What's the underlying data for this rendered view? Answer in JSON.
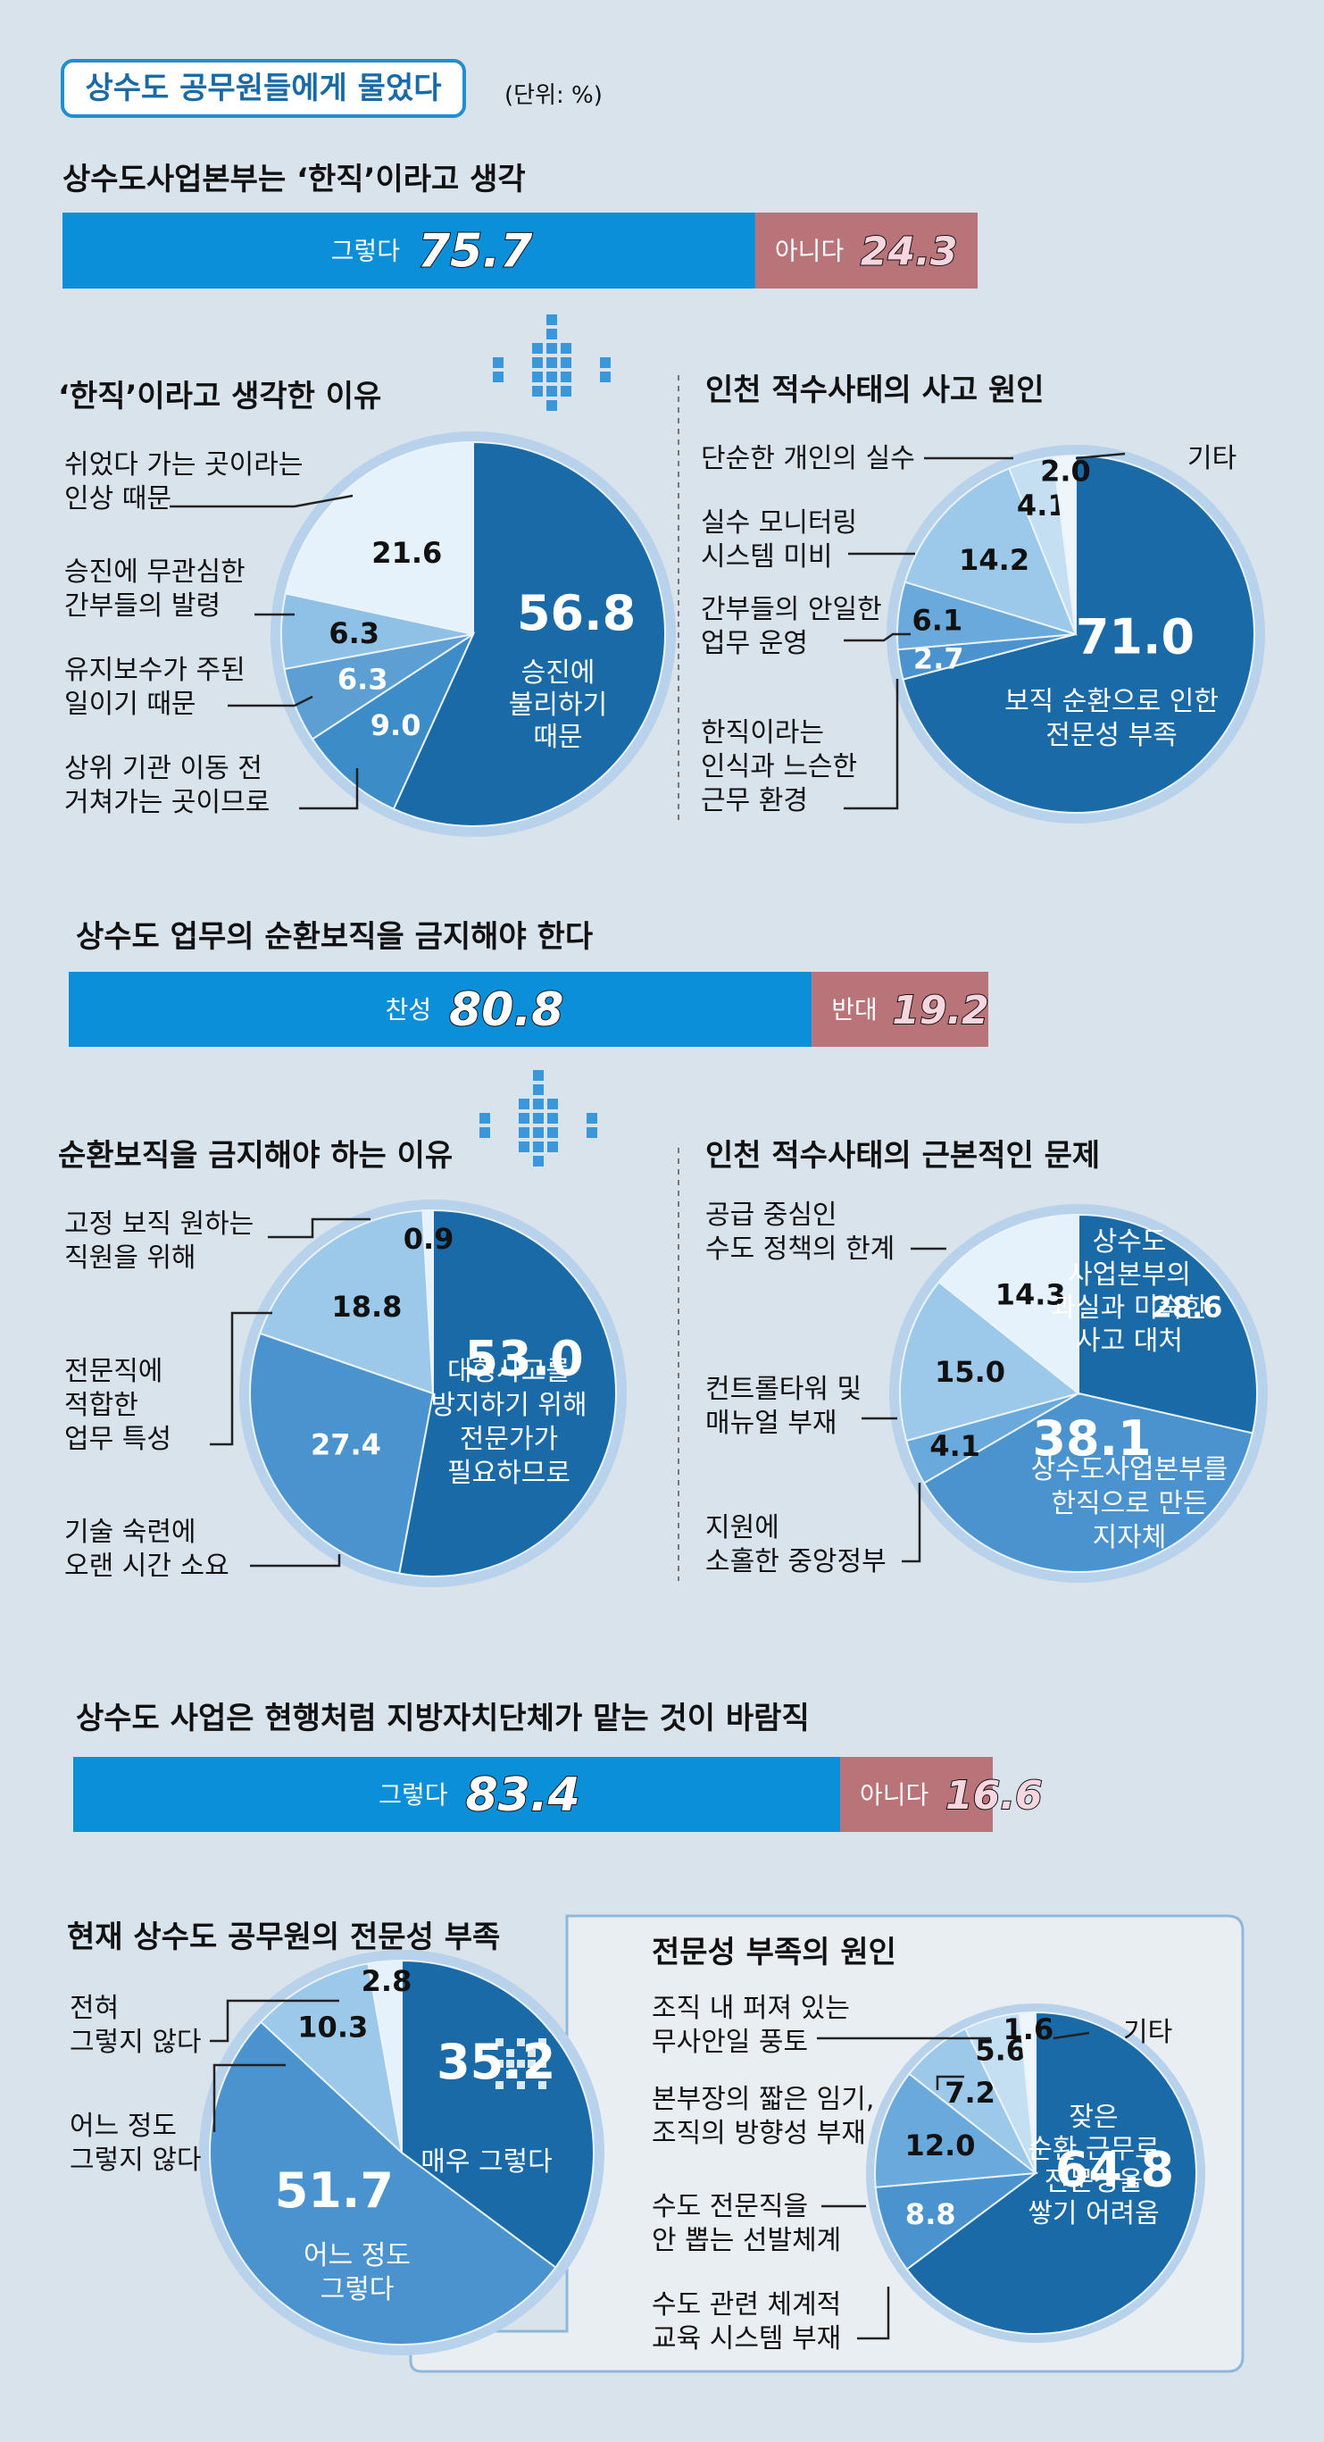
{
  "title": "상수도 공무원들에게 물었다",
  "unit": "(단위: %)",
  "bars": [
    {
      "title": "상수도사업본부는 ‘한직’이라고 생각",
      "yes_label": "그렇다",
      "yes": 75.7,
      "yes_text": "75.7",
      "no_label": "아니다",
      "no": 24.3,
      "no_text": "24.3"
    },
    {
      "title": "상수도 업무의 순환보직을 금지해야 한다",
      "yes_label": "찬성",
      "yes": 80.8,
      "yes_text": "80.8",
      "no_label": "반대",
      "no": 19.2,
      "no_text": "19.2"
    },
    {
      "title": "상수도 사업은 현행처럼 지방자치단체가 맡는 것이 바람직",
      "yes_label": "그렇다",
      "yes": 83.4,
      "yes_text": "83.4",
      "no_label": "아니다",
      "no": 16.6,
      "no_text": "16.6"
    }
  ],
  "pie_titles": {
    "p1": "‘한직’이라고 생각한 이유",
    "p2": "인천 적수사태의 사고 원인",
    "p3": "순환보직을 금지해야 하는 이유",
    "p4": "인천 적수사태의 근본적인 문제",
    "p5": "현재 상수도 공무원의 전문성 부족",
    "p6": "전문성 부족의 원인"
  },
  "chart_data": [
    {
      "type": "bar",
      "title": "상수도사업본부는 ‘한직’이라고 생각",
      "categories": [
        "그렇다",
        "아니다"
      ],
      "values": [
        75.7,
        24.3
      ]
    },
    {
      "type": "pie",
      "title": "‘한직’이라고 생각한 이유",
      "slices": [
        {
          "label": "승진에 불리하기 때문",
          "value": 56.8
        },
        {
          "label": "상위 기관 이동 전 거쳐가는 곳이므로",
          "value": 9.0
        },
        {
          "label": "유지보수가 주된 일이기 때문",
          "value": 6.3
        },
        {
          "label": "승진에 무관심한 간부들의 발령",
          "value": 6.3
        },
        {
          "label": "쉬었다 가는 곳이라는 인상 때문",
          "value": 21.6
        }
      ]
    },
    {
      "type": "pie",
      "title": "인천 적수사태의 사고 원인",
      "slices": [
        {
          "label": "보직 순환으로 인한 전문성 부족",
          "value": 71.0
        },
        {
          "label": "한직이라는 인식과 느슨한 근무 환경",
          "value": 2.7
        },
        {
          "label": "간부들의 안일한 업무 운영",
          "value": 6.1
        },
        {
          "label": "실수 모니터링 시스템 미비",
          "value": 14.2
        },
        {
          "label": "단순한 개인의 실수",
          "value": 4.1
        },
        {
          "label": "기타",
          "value": 2.0
        }
      ]
    },
    {
      "type": "bar",
      "title": "상수도 업무의 순환보직을 금지해야 한다",
      "categories": [
        "찬성",
        "반대"
      ],
      "values": [
        80.8,
        19.2
      ]
    },
    {
      "type": "pie",
      "title": "순환보직을 금지해야 하는 이유",
      "slices": [
        {
          "label": "대형사고를 방지하기 위해 전문가가 필요하므로",
          "value": 53.0
        },
        {
          "label": "기술 숙련에 오랜 시간 소요",
          "value": 27.4
        },
        {
          "label": "전문직에 적합한 업무 특성",
          "value": 18.8
        },
        {
          "label": "고정 보직 원하는 직원을 위해",
          "value": 0.9
        }
      ]
    },
    {
      "type": "pie",
      "title": "인천 적수사태의 근본적인 문제",
      "slices": [
        {
          "label": "상수도사업본부의 과실과 미숙한 사고 대처",
          "value": 28.6
        },
        {
          "label": "상수도사업본부를 한직으로 만든 지자체",
          "value": 38.1
        },
        {
          "label": "지원에 소홀한 중앙정부",
          "value": 4.1
        },
        {
          "label": "컨트롤타워 및 매뉴얼 부재",
          "value": 15.0
        },
        {
          "label": "공급 중심인 수도 정책의 한계",
          "value": 14.3
        }
      ]
    },
    {
      "type": "bar",
      "title": "상수도 사업은 현행처럼 지방자치단체가 맡는 것이 바람직",
      "categories": [
        "그렇다",
        "아니다"
      ],
      "values": [
        83.4,
        16.6
      ]
    },
    {
      "type": "pie",
      "title": "현재 상수도 공무원의 전문성 부족",
      "slices": [
        {
          "label": "매우 그렇다",
          "value": 35.2
        },
        {
          "label": "어느 정도 그렇다",
          "value": 51.7
        },
        {
          "label": "어느 정도 그렇지 않다",
          "value": 10.3
        },
        {
          "label": "전혀 그렇지 않다",
          "value": 2.8
        }
      ]
    },
    {
      "type": "pie",
      "title": "전문성 부족의 원인",
      "slices": [
        {
          "label": "잦은 순환 근무로 전문성을 쌓기 어려움",
          "value": 64.8
        },
        {
          "label": "수도 관련 체계적 교육 시스템 부재",
          "value": 8.8
        },
        {
          "label": "수도 전문직을 안 뽑는 선발체계",
          "value": 12.0
        },
        {
          "label": "본부장의 짧은 임기, 조직의 방향성 부재",
          "value": 7.2
        },
        {
          "label": "조직 내 퍼져 있는 무사안일 풍토",
          "value": 5.6
        },
        {
          "label": "기타",
          "value": 1.6
        }
      ]
    }
  ],
  "pies": [
    {
      "id": "p1",
      "slices": [
        {
          "value": 56.8,
          "text": "56.8",
          "color": "#1a6aa8"
        },
        {
          "value": 9.0,
          "text": "9.0",
          "color": "#3c8cc8"
        },
        {
          "value": 6.3,
          "text": "6.3",
          "color": "#5d9fd3"
        },
        {
          "value": 6.3,
          "text": "6.3",
          "color": "#8fc0e6"
        },
        {
          "value": 21.6,
          "text": "21.6",
          "color": "#e6f2fb"
        }
      ]
    },
    {
      "id": "p2",
      "slices": [
        {
          "value": 71.0,
          "text": "71.0",
          "color": "#1a6aa8"
        },
        {
          "value": 2.7,
          "text": "2.7",
          "color": "#4a93cf"
        },
        {
          "value": 6.1,
          "text": "6.1",
          "color": "#6aa9dc"
        },
        {
          "value": 14.2,
          "text": "14.2",
          "color": "#9cc8ea"
        },
        {
          "value": 4.1,
          "text": "4.1",
          "color": "#c4def2"
        },
        {
          "value": 2.0,
          "text": "2.0",
          "color": "#eef5fb"
        }
      ]
    },
    {
      "id": "p3",
      "slices": [
        {
          "value": 53.0,
          "text": "53.0",
          "color": "#1a6aa8"
        },
        {
          "value": 27.4,
          "text": "27.4",
          "color": "#4a93cf"
        },
        {
          "value": 18.8,
          "text": "18.8",
          "color": "#9cc8ea"
        },
        {
          "value": 0.9,
          "text": "0.9",
          "color": "#e6f2fb"
        }
      ]
    },
    {
      "id": "p4",
      "slices": [
        {
          "value": 28.6,
          "text": "28.6",
          "color": "#1a6aa8"
        },
        {
          "value": 38.1,
          "text": "38.1",
          "color": "#4a93cf"
        },
        {
          "value": 4.1,
          "text": "4.1",
          "color": "#6aa9dc"
        },
        {
          "value": 15.0,
          "text": "15.0",
          "color": "#9cc8ea"
        },
        {
          "value": 14.3,
          "text": "14.3",
          "color": "#e6f2fb"
        }
      ]
    },
    {
      "id": "p5",
      "slices": [
        {
          "value": 35.2,
          "text": "35.2",
          "color": "#1a6aa8"
        },
        {
          "value": 51.7,
          "text": "51.7",
          "color": "#4a93cf"
        },
        {
          "value": 10.3,
          "text": "10.3",
          "color": "#9cc8ea"
        },
        {
          "value": 2.8,
          "text": "2.8",
          "color": "#e6f2fb"
        }
      ]
    },
    {
      "id": "p6",
      "slices": [
        {
          "value": 64.8,
          "text": "64.8",
          "color": "#1a6aa8"
        },
        {
          "value": 8.8,
          "text": "8.8",
          "color": "#4a93cf"
        },
        {
          "value": 12.0,
          "text": "12.0",
          "color": "#6aa9dc"
        },
        {
          "value": 7.2,
          "text": "7.2",
          "color": "#9cc8ea"
        },
        {
          "value": 5.6,
          "text": "5.6",
          "color": "#c4def2"
        },
        {
          "value": 1.6,
          "text": "1.6",
          "color": "#eef5fb"
        }
      ]
    }
  ],
  "labels": {
    "p1_big": "승진에\n불리하기\n때문",
    "p1_a": "쉬었다 가는 곳이라는\n인상 때문",
    "p1_b": "승진에 무관심한\n간부들의 발령",
    "p1_c": "유지보수가 주된\n일이기 때문",
    "p1_d": "상위 기관 이동 전\n거쳐가는 곳이므로",
    "p2_big": "보직 순환으로 인한\n전문성 부족",
    "p2_a": "단순한 개인의 실수",
    "p2_etc": "기타",
    "p2_b": "실수 모니터링\n시스템 미비",
    "p2_c": "간부들의 안일한\n업무 운영",
    "p2_d": "한직이라는\n인식과 느슨한\n근무 환경",
    "p3_big": "대형사고를\n방지하기 위해\n전문가가\n필요하므로",
    "p3_a": "고정 보직 원하는\n직원을 위해",
    "p3_b": "전문직에\n적합한\n업무 특성",
    "p3_c": "기술 숙련에\n오랜 시간 소요",
    "p4_big1": "상수도\n사업본부의\n과실과 미숙한\n사고 대처",
    "p4_big2": "상수도사업본부를\n한직으로 만든\n지자체",
    "p4_a": "공급 중심인\n수도 정책의 한계",
    "p4_b": "컨트롤타워 및\n매뉴얼 부재",
    "p4_c": "지원에\n소홀한 중앙정부",
    "p5_big1": "매우 그렇다",
    "p5_big2": "어느 정도\n그렇다",
    "p5_a": "전혀\n그렇지 않다",
    "p5_b": "어느 정도\n그렇지 않다",
    "p6_big": "잦은\n순환 근무로\n전문성을\n쌓기 어려움",
    "p6_a": "조직 내 퍼져 있는\n무사안일 풍토",
    "p6_etc": "기타",
    "p6_b": "본부장의 짧은 임기,\n조직의 방향성 부재",
    "p6_c": "수도 전문직을\n안 뽑는 선발체계",
    "p6_d": "수도 관련 체계적\n교육 시스템 부재"
  },
  "colors": {
    "bar_yes": "#0a8fd8",
    "bar_no": "#b87479",
    "title_border": "#1f8fd0",
    "pie_ring": "#b7d2ea"
  }
}
